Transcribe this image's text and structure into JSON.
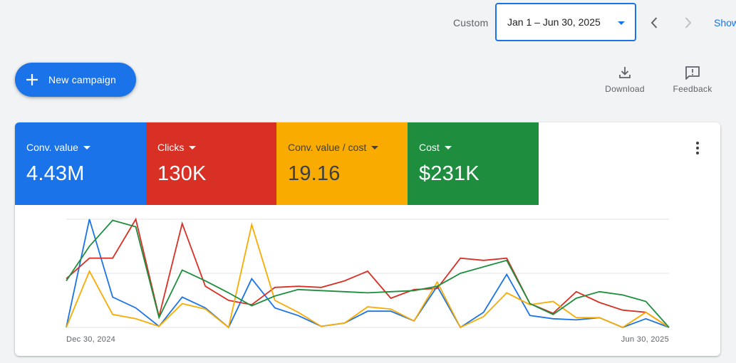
{
  "header": {
    "custom_label": "Custom",
    "date_range": "Jan 1 – Jun 30, 2025",
    "show_link": "Show"
  },
  "actions": {
    "new_campaign": "New campaign",
    "download": "Download",
    "feedback": "Feedback"
  },
  "metrics": [
    {
      "name": "Conv. value",
      "value": "4.43M",
      "color": "#1a73e8"
    },
    {
      "name": "Clicks",
      "value": "130K",
      "color": "#d93025"
    },
    {
      "name": "Conv. value / cost",
      "value": "19.16",
      "color": "#f9ab00"
    },
    {
      "name": "Cost",
      "value": "$231K",
      "color": "#1e8e3e"
    }
  ],
  "chart_data": {
    "type": "line",
    "x_labels": [
      "Dec 30, 2024",
      "Jun 30, 2025"
    ],
    "grid": true,
    "normalized_scale": [
      0,
      100
    ],
    "series": [
      {
        "color": "#1a73e8",
        "values": [
          0,
          100,
          28,
          18,
          1,
          28,
          18,
          0,
          45,
          18,
          11,
          1,
          4,
          15,
          15,
          6,
          38,
          0,
          14,
          49,
          11,
          8,
          7,
          9,
          0,
          8,
          0
        ]
      },
      {
        "color": "#d93025",
        "values": [
          45,
          64,
          64,
          100,
          10,
          96,
          38,
          25,
          21,
          37,
          38,
          37,
          43,
          52,
          27,
          35,
          36,
          64,
          62,
          64,
          22,
          13,
          33,
          23,
          16,
          14,
          0
        ]
      },
      {
        "color": "#f9ab00",
        "values": [
          0,
          52,
          12,
          8,
          1,
          22,
          17,
          0,
          95,
          25,
          14,
          1,
          4,
          19,
          17,
          6,
          42,
          0,
          10,
          32,
          21,
          24,
          9,
          9,
          0,
          14,
          0
        ]
      },
      {
        "color": "#1e8e3e",
        "values": [
          43,
          75,
          99,
          93,
          9,
          53,
          43,
          32,
          20,
          29,
          35,
          34,
          33,
          32,
          33,
          34,
          38,
          50,
          56,
          62,
          22,
          12,
          27,
          33,
          30,
          24,
          0
        ]
      }
    ]
  }
}
